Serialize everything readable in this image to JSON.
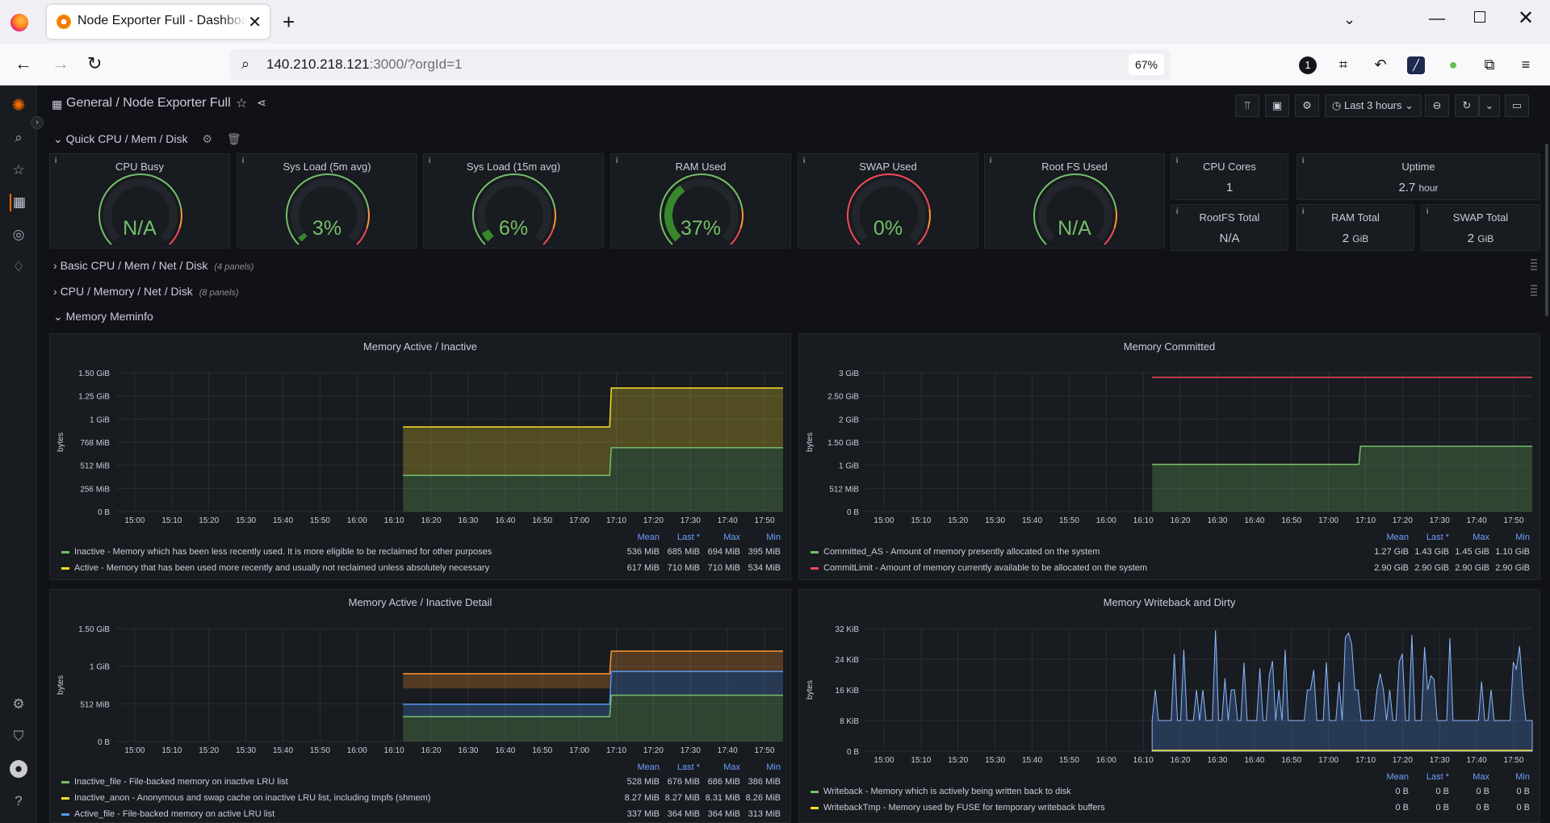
{
  "browser": {
    "tab_title": "Node Exporter Full - Dashboard",
    "url_host": "140.210.218.121",
    "url_rest": ":3000/?orgId=1",
    "zoom": "67%"
  },
  "grafana": {
    "breadcrumb": "General  /  Node Exporter Full",
    "time_range": "Last 3 hours",
    "rows": [
      {
        "title": "Quick CPU / Mem / Disk",
        "count": ""
      },
      {
        "title": "Basic CPU / Mem / Net / Disk",
        "count": "(4 panels)"
      },
      {
        "title": "CPU / Memory / Net / Disk",
        "count": "(8 panels)"
      },
      {
        "title": "Memory Meminfo",
        "count": ""
      }
    ],
    "gauges": [
      {
        "title": "CPU Busy",
        "value": "N/A",
        "pct": 0
      },
      {
        "title": "Sys Load (5m avg)",
        "value": "3%",
        "pct": 3
      },
      {
        "title": "Sys Load (15m avg)",
        "value": "6%",
        "pct": 6
      },
      {
        "title": "RAM Used",
        "value": "37%",
        "pct": 37
      },
      {
        "title": "SWAP Used",
        "value": "0%",
        "pct": 0
      },
      {
        "title": "Root FS Used",
        "value": "N/A",
        "pct": 0
      }
    ],
    "stats": [
      {
        "title": "CPU Cores",
        "value": "1",
        "unit": ""
      },
      {
        "title": "Uptime",
        "value": "2.7",
        "unit": "hour"
      },
      {
        "title": "RootFS Total",
        "value": "N/A",
        "unit": ""
      },
      {
        "title": "RAM Total",
        "value": "2",
        "unit": "GiB"
      },
      {
        "title": "SWAP Total",
        "value": "2",
        "unit": "GiB"
      }
    ],
    "legend_headers": [
      "Mean",
      "Last *",
      "Max",
      "Min"
    ],
    "graphs": [
      {
        "title": "Memory Active / Inactive",
        "ylabel": "bytes",
        "yticks": [
          "1.50 GiB",
          "1.25 GiB",
          "1 GiB",
          "768 MiB",
          "512 MiB",
          "256 MiB",
          "0 B"
        ],
        "xticks": [
          "15:00",
          "15:10",
          "15:20",
          "15:30",
          "15:40",
          "15:50",
          "16:00",
          "16:10",
          "16:20",
          "16:30",
          "16:40",
          "16:50",
          "17:00",
          "17:10",
          "17:20",
          "17:30",
          "17:40",
          "17:50"
        ],
        "legend": [
          {
            "color": "#73bf69",
            "label": "Inactive - Memory which has been less recently used. It is more eligible to be reclaimed for other purposes",
            "vals": [
              "536 MiB",
              "685 MiB",
              "694 MiB",
              "395 MiB"
            ]
          },
          {
            "color": "#fade2a",
            "label": "Active - Memory that has been used more recently and usually not reclaimed unless absolutely necessary",
            "vals": [
              "617 MiB",
              "710 MiB",
              "710 MiB",
              "534 MiB"
            ]
          }
        ]
      },
      {
        "title": "Memory Committed",
        "ylabel": "bytes",
        "yticks": [
          "3 GiB",
          "2.50 GiB",
          "2 GiB",
          "1.50 GiB",
          "1 GiB",
          "512 MiB",
          "0 B"
        ],
        "xticks": [
          "15:00",
          "15:10",
          "15:20",
          "15:30",
          "15:40",
          "15:50",
          "16:00",
          "16:10",
          "16:20",
          "16:30",
          "16:40",
          "16:50",
          "17:00",
          "17:10",
          "17:20",
          "17:30",
          "17:40",
          "17:50"
        ],
        "legend": [
          {
            "color": "#73bf69",
            "label": "Committed_AS - Amount of memory presently allocated on the system",
            "vals": [
              "1.27 GiB",
              "1.43 GiB",
              "1.45 GiB",
              "1.10 GiB"
            ]
          },
          {
            "color": "#f2495c",
            "label": "CommitLimit - Amount of memory currently available to be allocated on the system",
            "vals": [
              "2.90 GiB",
              "2.90 GiB",
              "2.90 GiB",
              "2.90 GiB"
            ]
          }
        ]
      },
      {
        "title": "Memory Active / Inactive Detail",
        "ylabel": "bytes",
        "yticks": [
          "1.50 GiB",
          "1 GiB",
          "512 MiB",
          "0 B"
        ],
        "xticks": [
          "15:00",
          "15:10",
          "15:20",
          "15:30",
          "15:40",
          "15:50",
          "16:00",
          "16:10",
          "16:20",
          "16:30",
          "16:40",
          "16:50",
          "17:00",
          "17:10",
          "17:20",
          "17:30",
          "17:40",
          "17:50"
        ],
        "legend": [
          {
            "color": "#73bf69",
            "label": "Inactive_file - File-backed memory on inactive LRU list",
            "vals": [
              "528 MiB",
              "676 MiB",
              "686 MiB",
              "386 MiB"
            ]
          },
          {
            "color": "#fade2a",
            "label": "Inactive_anon - Anonymous and swap cache on inactive LRU list, including tmpfs (shmem)",
            "vals": [
              "8.27 MiB",
              "8.27 MiB",
              "8.31 MiB",
              "8.26 MiB"
            ]
          },
          {
            "color": "#5794f2",
            "label": "Active_file - File-backed memory on active LRU list",
            "vals": [
              "337 MiB",
              "364 MiB",
              "364 MiB",
              "313 MiB"
            ]
          }
        ]
      },
      {
        "title": "Memory Writeback and Dirty",
        "ylabel": "bytes",
        "yticks": [
          "32 KiB",
          "24 KiB",
          "16 KiB",
          "8 KiB",
          "0 B"
        ],
        "xticks": [
          "15:00",
          "15:10",
          "15:20",
          "15:30",
          "15:40",
          "15:50",
          "16:00",
          "16:10",
          "16:20",
          "16:30",
          "16:40",
          "16:50",
          "17:00",
          "17:10",
          "17:20",
          "17:30",
          "17:40",
          "17:50"
        ],
        "legend": [
          {
            "color": "#73bf69",
            "label": "Writeback - Memory which is actively being written back to disk",
            "vals": [
              "0 B",
              "0 B",
              "0 B",
              "0 B"
            ]
          },
          {
            "color": "#fade2a",
            "label": "WritebackTmp - Memory used by FUSE for temporary writeback buffers",
            "vals": [
              "0 B",
              "0 B",
              "0 B",
              "0 B"
            ]
          }
        ]
      }
    ]
  }
}
